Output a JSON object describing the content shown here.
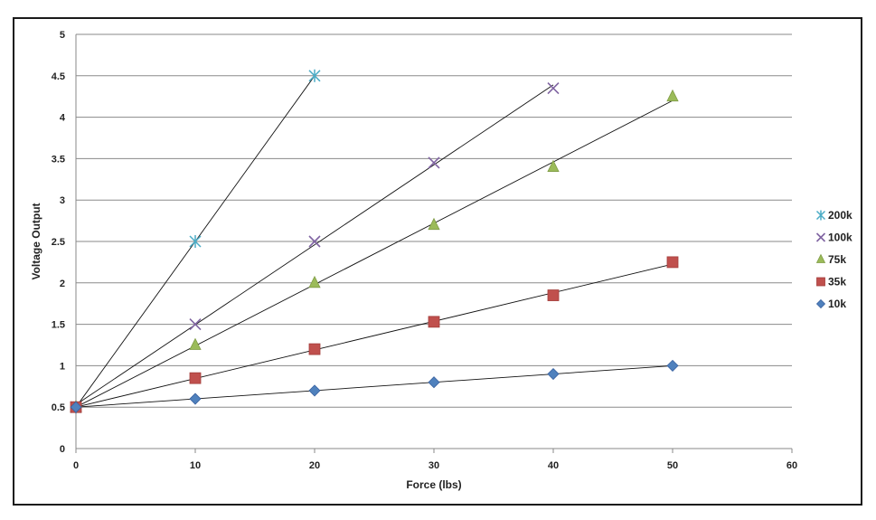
{
  "chart_data": {
    "type": "scatter",
    "title": "",
    "xlabel": "Force (lbs)",
    "ylabel": "Voltage Output",
    "xlim": [
      0,
      60
    ],
    "ylim": [
      0,
      5
    ],
    "xticks": [
      0,
      10,
      20,
      30,
      40,
      50,
      60
    ],
    "yticks": [
      0,
      0.5,
      1,
      1.5,
      2,
      2.5,
      3,
      3.5,
      4,
      4.5,
      5
    ],
    "grid": "horizontal",
    "legend_position": "right",
    "trendline": "linear",
    "series": [
      {
        "name": "200k",
        "marker": "asterisk",
        "color": "#4bacc6",
        "x": [
          0,
          10,
          20
        ],
        "y": [
          0.5,
          2.5,
          4.5
        ]
      },
      {
        "name": "100k",
        "marker": "x",
        "color": "#8064a2",
        "x": [
          0,
          10,
          20,
          30,
          40
        ],
        "y": [
          0.5,
          1.5,
          2.5,
          3.45,
          4.35
        ]
      },
      {
        "name": "75k",
        "marker": "triangle",
        "color": "#9bbb59",
        "x": [
          0,
          10,
          20,
          30,
          40,
          50
        ],
        "y": [
          0.5,
          1.25,
          2.0,
          2.7,
          3.4,
          4.25
        ]
      },
      {
        "name": "35k",
        "marker": "square",
        "color": "#c0504d",
        "x": [
          0,
          10,
          20,
          30,
          40,
          50
        ],
        "y": [
          0.5,
          0.85,
          1.2,
          1.53,
          1.85,
          2.25
        ]
      },
      {
        "name": "10k",
        "marker": "diamond",
        "color": "#4f81bd",
        "x": [
          0,
          10,
          20,
          30,
          40,
          50
        ],
        "y": [
          0.5,
          0.6,
          0.7,
          0.8,
          0.9,
          1.0
        ]
      }
    ]
  }
}
